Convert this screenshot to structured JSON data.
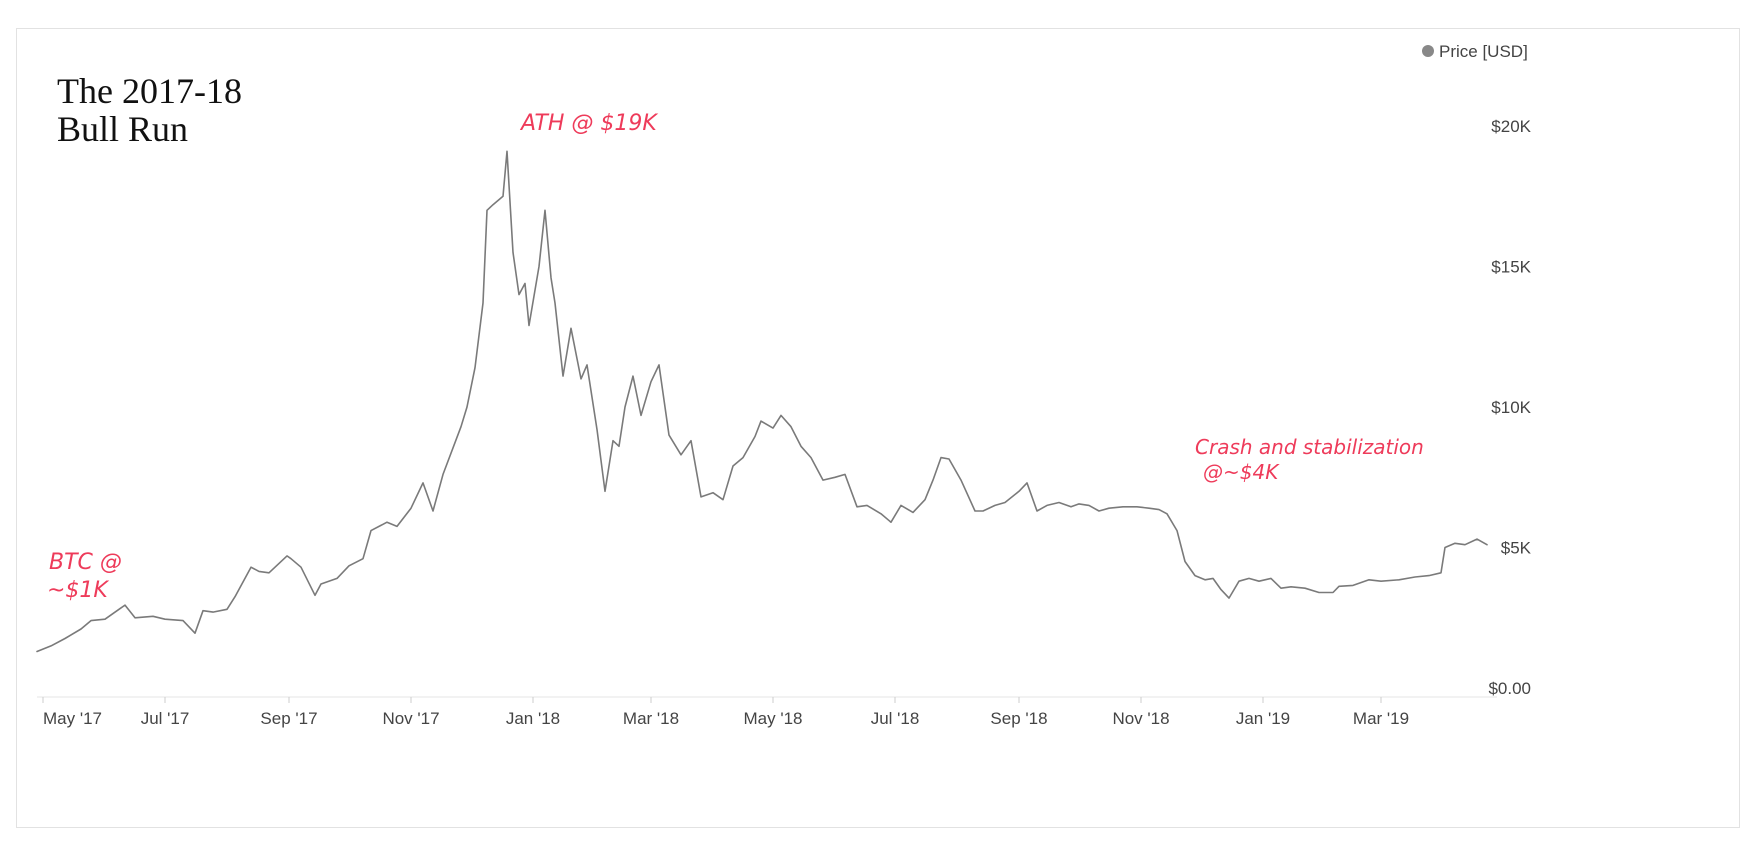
{
  "chart_data": {
    "type": "line",
    "title": [
      "The 2017-18",
      "Bull Run"
    ],
    "legend": {
      "label": "Price [USD]",
      "placement": "top-right",
      "color": "#888888"
    },
    "line_color": "#7a7a7a",
    "x_tick_labels": [
      "May '17",
      "Jul '17",
      "Sep '17",
      "Nov '17",
      "Jan '18",
      "Mar '18",
      "May '18",
      "Jul '18",
      "Sep '18",
      "Nov '18",
      "Jan '19",
      "Mar '19"
    ],
    "x_tick_dates": [
      "2017-05-01",
      "2017-07-01",
      "2017-09-01",
      "2017-11-01",
      "2018-01-01",
      "2018-03-01",
      "2018-05-01",
      "2018-07-01",
      "2018-09-01",
      "2018-11-01",
      "2019-01-01",
      "2019-03-01"
    ],
    "y_tick_labels": [
      "$0.00",
      "$5K",
      "$10K",
      "$15K",
      "$20K"
    ],
    "y_tick_values": [
      0,
      5000,
      10000,
      15000,
      20000
    ],
    "xlim": [
      "2017-04-28",
      "2019-04-23"
    ],
    "ylim": [
      0,
      20000
    ],
    "grid": false,
    "annotations": [
      {
        "lines": [
          "BTC @",
          "~$1K"
        ],
        "color": "#ee3b5a"
      },
      {
        "lines": [
          "ATH @ $19K"
        ],
        "color": "#ee3b5a"
      },
      {
        "lines": [
          "Crash and stabilization",
          "@~$4K"
        ],
        "color": "#ee3b5a"
      }
    ],
    "series": [
      {
        "x": [
          "2017-04-28",
          "2017-05-05",
          "2017-05-12",
          "2017-05-20",
          "2017-05-25",
          "2017-06-01",
          "2017-06-08",
          "2017-06-11",
          "2017-06-16",
          "2017-06-25",
          "2017-07-01",
          "2017-07-10",
          "2017-07-16",
          "2017-07-20",
          "2017-07-25",
          "2017-08-01",
          "2017-08-05",
          "2017-08-13",
          "2017-08-17",
          "2017-08-22",
          "2017-08-31",
          "2017-09-02",
          "2017-09-07",
          "2017-09-14",
          "2017-09-17",
          "2017-09-25",
          "2017-10-01",
          "2017-10-08",
          "2017-10-12",
          "2017-10-20",
          "2017-10-25",
          "2017-11-01",
          "2017-11-07",
          "2017-11-12",
          "2017-11-17",
          "2017-11-26",
          "2017-11-29",
          "2017-12-03",
          "2017-12-07",
          "2017-12-09",
          "2017-12-12",
          "2017-12-17",
          "2017-12-19",
          "2017-12-22",
          "2017-12-25",
          "2017-12-28",
          "2017-12-30",
          "2018-01-04",
          "2018-01-07",
          "2018-01-10",
          "2018-01-12",
          "2018-01-16",
          "2018-01-20",
          "2018-01-25",
          "2018-01-28",
          "2018-02-02",
          "2018-02-06",
          "2018-02-10",
          "2018-02-13",
          "2018-02-16",
          "2018-02-20",
          "2018-02-24",
          "2018-03-01",
          "2018-03-05",
          "2018-03-10",
          "2018-03-16",
          "2018-03-21",
          "2018-03-26",
          "2018-04-01",
          "2018-04-06",
          "2018-04-11",
          "2018-04-16",
          "2018-04-22",
          "2018-04-25",
          "2018-05-01",
          "2018-05-05",
          "2018-05-10",
          "2018-05-15",
          "2018-05-20",
          "2018-05-26",
          "2018-06-01",
          "2018-06-06",
          "2018-06-12",
          "2018-06-17",
          "2018-06-24",
          "2018-06-29",
          "2018-07-04",
          "2018-07-10",
          "2018-07-16",
          "2018-07-20",
          "2018-07-24",
          "2018-07-28",
          "2018-08-03",
          "2018-08-10",
          "2018-08-14",
          "2018-08-20",
          "2018-08-25",
          "2018-09-01",
          "2018-09-05",
          "2018-09-10",
          "2018-09-15",
          "2018-09-21",
          "2018-09-27",
          "2018-10-01",
          "2018-10-06",
          "2018-10-11",
          "2018-10-16",
          "2018-10-23",
          "2018-10-30",
          "2018-11-05",
          "2018-11-10",
          "2018-11-14",
          "2018-11-19",
          "2018-11-23",
          "2018-11-28",
          "2018-12-03",
          "2018-12-07",
          "2018-12-11",
          "2018-12-15",
          "2018-12-20",
          "2018-12-25",
          "2018-12-30",
          "2019-01-05",
          "2019-01-10",
          "2019-01-15",
          "2019-01-22",
          "2019-01-29",
          "2019-02-05",
          "2019-02-08",
          "2019-02-15",
          "2019-02-23",
          "2019-03-01",
          "2019-03-10",
          "2019-03-18",
          "2019-03-25",
          "2019-03-31",
          "2019-04-02",
          "2019-04-07",
          "2019-04-12",
          "2019-04-18",
          "2019-04-23"
        ],
        "y": [
          1300,
          1500,
          1760,
          2100,
          2400,
          2450,
          2800,
          2950,
          2500,
          2550,
          2450,
          2400,
          1950,
          2750,
          2700,
          2800,
          3250,
          4300,
          4150,
          4100,
          4700,
          4600,
          4300,
          3300,
          3700,
          3900,
          4350,
          4600,
          5600,
          5900,
          5750,
          6400,
          7300,
          6300,
          7600,
          9300,
          10000,
          11400,
          13700,
          17000,
          17200,
          17500,
          19100,
          15500,
          14000,
          14400,
          12900,
          15000,
          17000,
          14600,
          13700,
          11100,
          12800,
          11000,
          11500,
          9200,
          7000,
          8800,
          8600,
          10000,
          11100,
          9700,
          10900,
          11500,
          9000,
          8300,
          8800,
          6800,
          6950,
          6700,
          7900,
          8200,
          8950,
          9500,
          9250,
          9700,
          9300,
          8600,
          8200,
          7400,
          7500,
          7600,
          6450,
          6500,
          6200,
          5900,
          6500,
          6250,
          6700,
          7400,
          8200,
          8150,
          7400,
          6300,
          6300,
          6500,
          6600,
          7000,
          7300,
          6300,
          6500,
          6600,
          6450,
          6550,
          6500,
          6300,
          6400,
          6450,
          6450,
          6400,
          6350,
          6200,
          5600,
          4500,
          4000,
          3850,
          3900,
          3500,
          3200,
          3800,
          3900,
          3800,
          3900,
          3550,
          3600,
          3550,
          3400,
          3400,
          3620,
          3650,
          3850,
          3800,
          3850,
          3950,
          4000,
          4100,
          5000,
          5150,
          5100,
          5300,
          5100
        ]
      }
    ]
  }
}
